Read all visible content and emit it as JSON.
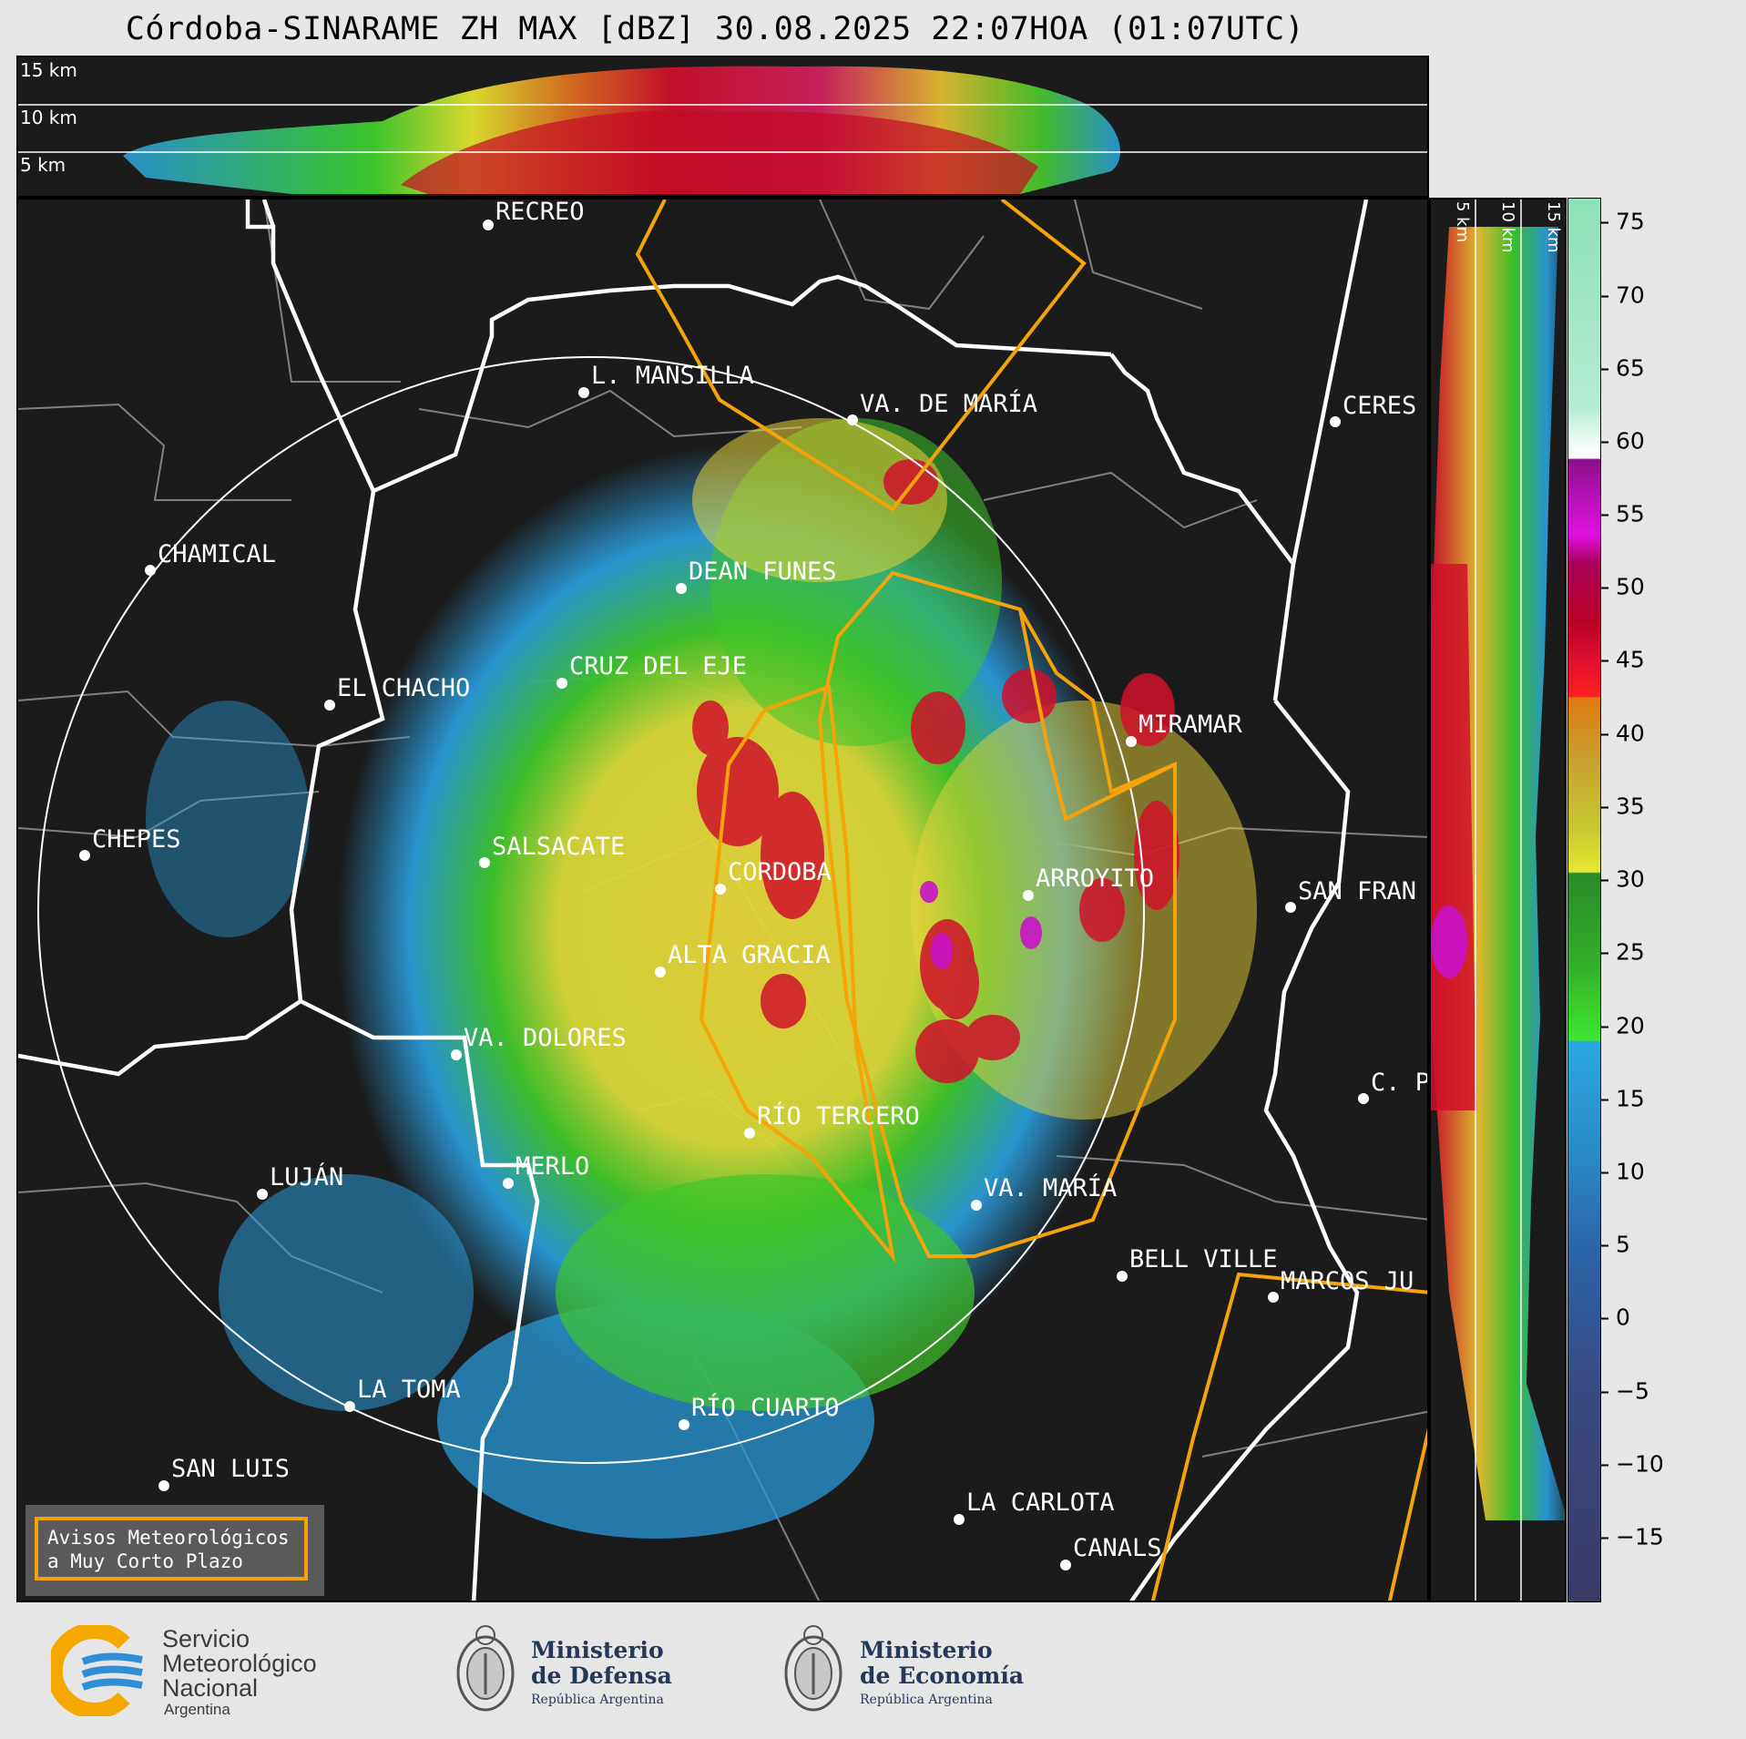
{
  "title": "Córdoba-SINARAME ZH MAX [dBZ] 30.08.2025 22:07HOA (01:07UTC)",
  "top_panel": {
    "altitude_labels": [
      "15 km",
      "10 km",
      "5 km"
    ]
  },
  "side_panel": {
    "altitude_labels": [
      "5 km",
      "10 km",
      "15 km"
    ]
  },
  "colorbar": {
    "unit": "dBZ",
    "ticks": [
      "75",
      "70",
      "65",
      "60",
      "55",
      "50",
      "45",
      "40",
      "35",
      "30",
      "25",
      "20",
      "15",
      "10",
      "5",
      "0",
      "−5",
      "−10",
      "−15"
    ],
    "range": [
      -20,
      77
    ]
  },
  "cities": [
    {
      "name": "RECREO"
    },
    {
      "name": "L. MANSILLA"
    },
    {
      "name": "VA. DE MARÍA"
    },
    {
      "name": "CERES"
    },
    {
      "name": "CHAMICAL"
    },
    {
      "name": "DEAN FUNES"
    },
    {
      "name": "CRUZ DEL EJE"
    },
    {
      "name": "EL CHACHO"
    },
    {
      "name": "MIRAMAR"
    },
    {
      "name": "CHEPES"
    },
    {
      "name": "SALSACATE"
    },
    {
      "name": "CORDOBA"
    },
    {
      "name": "ARROYITO"
    },
    {
      "name": "SAN FRAN"
    },
    {
      "name": "ALTA GRACIA"
    },
    {
      "name": "VA. DOLORES"
    },
    {
      "name": "C. P"
    },
    {
      "name": "RÍO TERCERO"
    },
    {
      "name": "LUJÁN"
    },
    {
      "name": "MERLO"
    },
    {
      "name": "VA. MARÍA"
    },
    {
      "name": "BELL VILLE"
    },
    {
      "name": "MARCOS JU"
    },
    {
      "name": "LA TOMA"
    },
    {
      "name": "RÍO CUARTO"
    },
    {
      "name": "SAN LUIS"
    },
    {
      "name": "LA CARLOTA"
    },
    {
      "name": "CANALS"
    }
  ],
  "legend": {
    "line1": "Avisos Meteorológicos",
    "line2": "a Muy Corto Plazo"
  },
  "footer": {
    "smn_line1": "Servicio",
    "smn_line2": "Meteorológico",
    "smn_line3": "Nacional",
    "smn_line4": "Argentina",
    "defensa_line1": "Ministerio",
    "defensa_line2": "de Defensa",
    "defensa_line3": "República Argentina",
    "economia_line1": "Ministerio",
    "economia_line2": "de Economía",
    "economia_line3": "República Argentina"
  },
  "colors": {
    "background": "#1b1b1b",
    "border_province": "#ffffff",
    "border_department": "#808080",
    "warning_polygon": "#f5a30a"
  }
}
